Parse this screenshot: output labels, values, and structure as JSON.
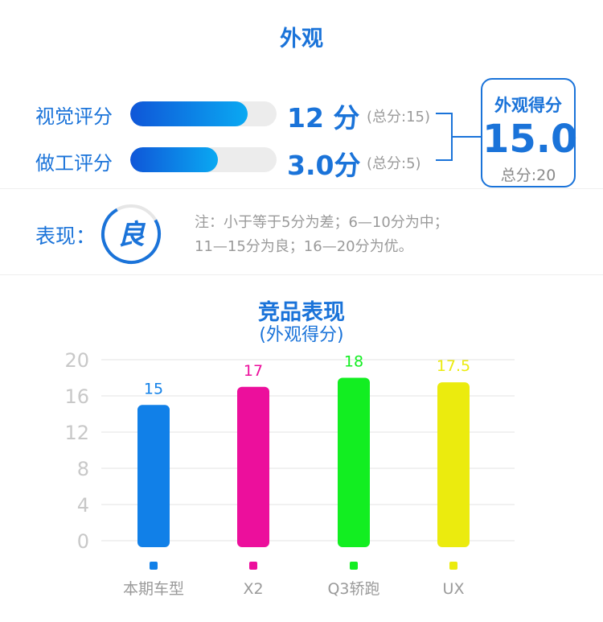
{
  "header": {
    "title": "外观"
  },
  "ratings": [
    {
      "label": "视觉评分",
      "score_text": "12 分",
      "total_text": "(总分:15)",
      "fraction": 0.8
    },
    {
      "label": "做工评分",
      "score_text": "3.0分",
      "total_text": "(总分:5)",
      "fraction": 0.6
    }
  ],
  "summary": {
    "label": "外观得分",
    "value": "15.0",
    "total": "总分:20"
  },
  "performance": {
    "label": "表现：",
    "grade": "良",
    "grade_fraction": 0.75,
    "note_line1": "注：小于等于5分为差；6—10分为中；",
    "note_line2": "11—15分为良；16—20分为优。"
  },
  "colors": {
    "accent": "#1a73d9",
    "bar_start": "#0f56d8",
    "bar_end": "#0aa9f2"
  },
  "chart_data": {
    "type": "bar",
    "title": "竞品表现",
    "subtitle": "(外观得分)",
    "categories": [
      "本期车型",
      "X2",
      "Q3轿跑",
      "UX"
    ],
    "values": [
      15,
      17,
      18,
      17.5
    ],
    "value_labels": [
      "15",
      "17",
      "18",
      "17.5"
    ],
    "colors": [
      "#1180e8",
      "#ec0f9c",
      "#12ee21",
      "#ebeb0e"
    ],
    "yticks": [
      "0",
      "4",
      "8",
      "12",
      "16",
      "20"
    ],
    "ylim": [
      0,
      20
    ],
    "grid": true,
    "legend_position": "bottom"
  }
}
